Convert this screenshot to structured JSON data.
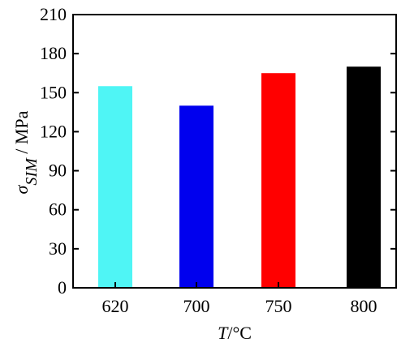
{
  "chart_data": {
    "type": "bar",
    "categories": [
      "620",
      "700",
      "750",
      "800"
    ],
    "values": [
      155,
      140,
      165,
      170
    ],
    "bar_colors": [
      "#4FF5F5",
      "#0000EE",
      "#FF0000",
      "#000000"
    ],
    "ylim": [
      0,
      210
    ],
    "yticks": [
      0,
      30,
      60,
      90,
      120,
      150,
      180,
      210
    ],
    "ylabel": {
      "symbol": "σ",
      "subscript": "SIM",
      "unit": " / MPa"
    },
    "xlabel": {
      "symbol": "T",
      "unit": "/°C"
    },
    "grid": false,
    "legend": "none"
  }
}
